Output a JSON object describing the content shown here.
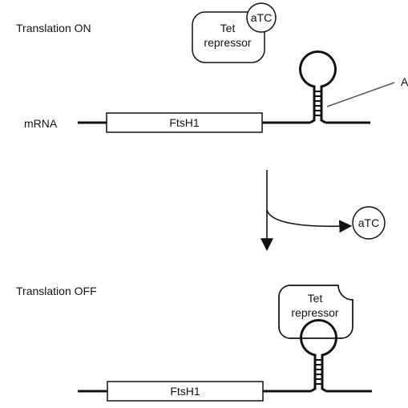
{
  "top_panel": {
    "state_label": "Translation ON",
    "mrna_label": "mRNA",
    "gene_label": "FtsH1",
    "repressor_line1": "Tet",
    "repressor_line2": "repressor",
    "inducer_label": "aTC",
    "aptamer_callout_letter": "A"
  },
  "transition": {
    "released_inducer_label": "aTC"
  },
  "bottom_panel": {
    "state_label": "Translation OFF",
    "gene_label": "FtsH1",
    "repressor_line1": "Tet",
    "repressor_line2": "repressor"
  },
  "colors": {
    "stroke": "#111111",
    "callout_line": "#555555",
    "background": "#ffffff"
  }
}
